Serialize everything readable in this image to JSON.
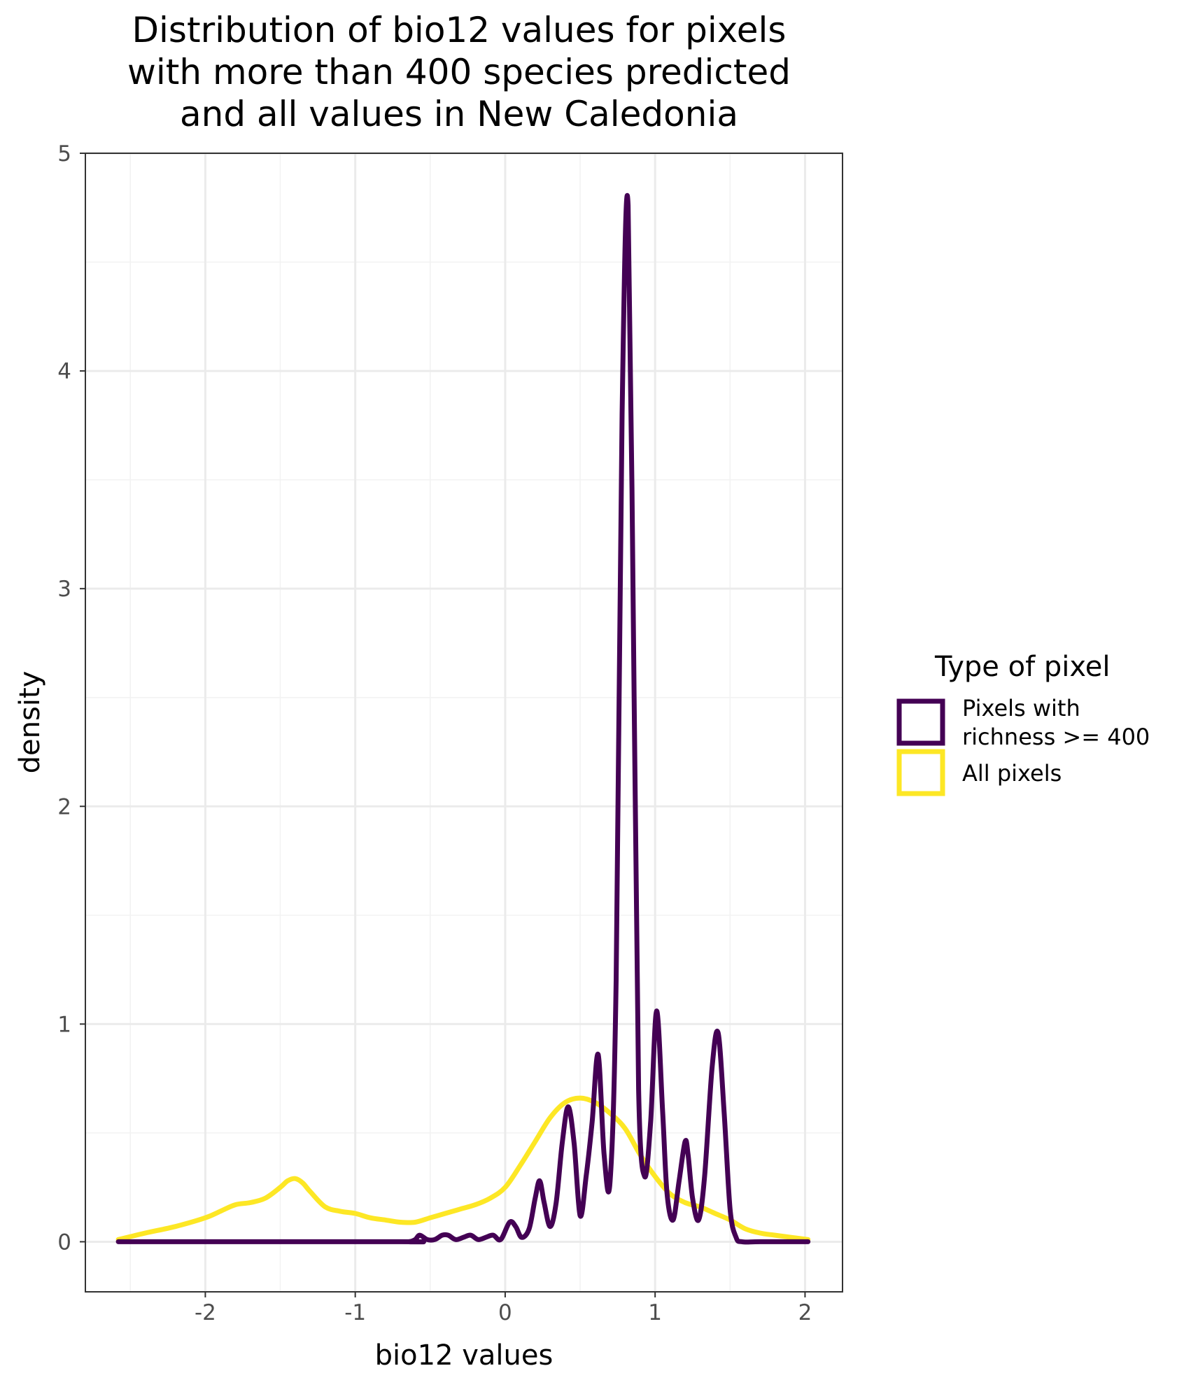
{
  "chart_data": {
    "type": "line",
    "title_lines": [
      "Distribution of bio12 values for pixels",
      "with more than 400 species predicted",
      "and all values in New Caledonia"
    ],
    "xlabel": "bio12 values",
    "ylabel": "density",
    "xlim": [
      -2.8,
      2.25
    ],
    "ylim": [
      -0.23,
      5.0
    ],
    "x_ticks": [
      -2,
      -1,
      0,
      1,
      2
    ],
    "x_tick_labels": [
      "-2",
      "-1",
      "0",
      "1",
      "2"
    ],
    "y_ticks": [
      0,
      1,
      2,
      3,
      4,
      5
    ],
    "y_tick_labels": [
      "0",
      "1",
      "2",
      "3",
      "4",
      "5"
    ],
    "grid": true,
    "legend": {
      "title": "Type of pixel",
      "position": "right",
      "entries": [
        {
          "label_lines": [
            "Pixels with",
            "richness >= 400"
          ],
          "color": "#440154"
        },
        {
          "label_lines": [
            "All pixels"
          ],
          "color": "#FDE725"
        }
      ]
    },
    "series": [
      {
        "name": "Pixels with richness >= 400",
        "color": "#440154",
        "x": [
          -2.58,
          -0.7,
          -0.64,
          -0.6,
          -0.57,
          -0.52,
          -0.47,
          -0.42,
          -0.38,
          -0.33,
          -0.28,
          -0.23,
          -0.18,
          -0.13,
          -0.08,
          -0.03,
          0.03,
          0.07,
          0.11,
          0.16,
          0.2,
          0.23,
          0.26,
          0.3,
          0.34,
          0.38,
          0.42,
          0.46,
          0.5,
          0.54,
          0.58,
          0.62,
          0.66,
          0.7,
          0.74,
          0.78,
          0.82,
          0.86,
          0.89,
          0.93,
          0.97,
          1.01,
          1.05,
          1.08,
          1.12,
          1.16,
          1.2,
          1.22,
          1.25,
          1.29,
          1.33,
          1.38,
          1.42,
          1.46,
          1.5,
          1.54,
          1.58,
          1.7,
          2.02
        ],
        "y": [
          0,
          0,
          0,
          0.01,
          0.03,
          0.01,
          0.01,
          0.03,
          0.03,
          0.01,
          0.02,
          0.03,
          0.01,
          0.02,
          0.03,
          0.01,
          0.09,
          0.07,
          0.02,
          0.06,
          0.2,
          0.28,
          0.18,
          0.07,
          0.18,
          0.45,
          0.62,
          0.45,
          0.12,
          0.3,
          0.55,
          0.86,
          0.4,
          0.28,
          1.2,
          3.8,
          4.76,
          2.5,
          0.7,
          0.3,
          0.55,
          1.06,
          0.6,
          0.22,
          0.1,
          0.28,
          0.46,
          0.4,
          0.2,
          0.1,
          0.3,
          0.8,
          0.96,
          0.6,
          0.15,
          0.02,
          0,
          0,
          0
        ]
      },
      {
        "name": "All pixels",
        "color": "#FDE725",
        "x": [
          -2.58,
          -2.4,
          -2.2,
          -2.0,
          -1.9,
          -1.8,
          -1.7,
          -1.6,
          -1.5,
          -1.45,
          -1.4,
          -1.35,
          -1.3,
          -1.2,
          -1.1,
          -1.0,
          -0.9,
          -0.8,
          -0.7,
          -0.6,
          -0.5,
          -0.4,
          -0.3,
          -0.2,
          -0.1,
          0.0,
          0.1,
          0.2,
          0.3,
          0.4,
          0.5,
          0.6,
          0.7,
          0.8,
          0.9,
          1.0,
          1.1,
          1.2,
          1.3,
          1.4,
          1.5,
          1.6,
          1.7,
          1.8,
          2.02
        ],
        "y": [
          0.01,
          0.04,
          0.07,
          0.11,
          0.14,
          0.17,
          0.18,
          0.2,
          0.25,
          0.28,
          0.29,
          0.27,
          0.23,
          0.16,
          0.14,
          0.13,
          0.11,
          0.1,
          0.09,
          0.09,
          0.11,
          0.13,
          0.15,
          0.17,
          0.2,
          0.25,
          0.35,
          0.46,
          0.57,
          0.64,
          0.66,
          0.64,
          0.59,
          0.52,
          0.4,
          0.3,
          0.22,
          0.18,
          0.16,
          0.13,
          0.1,
          0.06,
          0.04,
          0.03,
          0.01
        ]
      }
    ]
  }
}
